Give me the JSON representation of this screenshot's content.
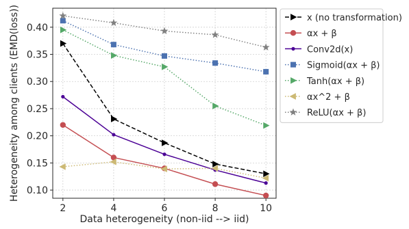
{
  "chart_data": {
    "type": "line",
    "title": "",
    "xlabel": "Data heterogeneity (non-iid --> iid)",
    "ylabel": "Heterogeneity among clients (EMD(loss))",
    "x": [
      2,
      4,
      6,
      8,
      10
    ],
    "xlim": [
      1.6,
      10.4
    ],
    "ylim": [
      0.085,
      0.435
    ],
    "xticks": [
      2,
      4,
      6,
      8,
      10
    ],
    "yticks": [
      0.1,
      0.15,
      0.2,
      0.25,
      0.3,
      0.35,
      0.4
    ],
    "ytick_labels": [
      "0.10",
      "0.15",
      "0.20",
      "0.25",
      "0.30",
      "0.35",
      "0.40"
    ],
    "grid": true,
    "legend_position": "outside-right",
    "series": [
      {
        "name": "x (no transformation)",
        "values": [
          0.37,
          0.231,
          0.187,
          0.148,
          0.13
        ],
        "color": "#000000",
        "dash": "dashed",
        "marker": "triangle-right"
      },
      {
        "name": "αx + β",
        "values": [
          0.22,
          0.16,
          0.14,
          0.111,
          0.09
        ],
        "color": "#c44e52",
        "dash": "solid",
        "marker": "circle"
      },
      {
        "name": "Conv2d(x)",
        "values": [
          0.272,
          0.202,
          0.166,
          0.137,
          0.113
        ],
        "color": "#4b0095",
        "dash": "solid",
        "marker": "dot"
      },
      {
        "name": "Sigmoid(αx + β)",
        "values": [
          0.412,
          0.368,
          0.347,
          0.334,
          0.318
        ],
        "color": "#4c72b0",
        "dash": "dotted",
        "marker": "square"
      },
      {
        "name": "Tanh(αx + β)",
        "values": [
          0.395,
          0.348,
          0.327,
          0.255,
          0.219
        ],
        "color": "#55a868",
        "dash": "dotted",
        "marker": "triangle-right"
      },
      {
        "name": "αx^2 + β",
        "values": [
          0.143,
          0.152,
          0.139,
          0.14,
          0.122
        ],
        "color": "#ccb974",
        "dash": "dotted",
        "marker": "triangle-left"
      },
      {
        "name": "ReLU(αx + β)",
        "values": [
          0.421,
          0.408,
          0.393,
          0.386,
          0.363
        ],
        "color": "#808080",
        "dash": "dotted",
        "marker": "star"
      }
    ]
  }
}
